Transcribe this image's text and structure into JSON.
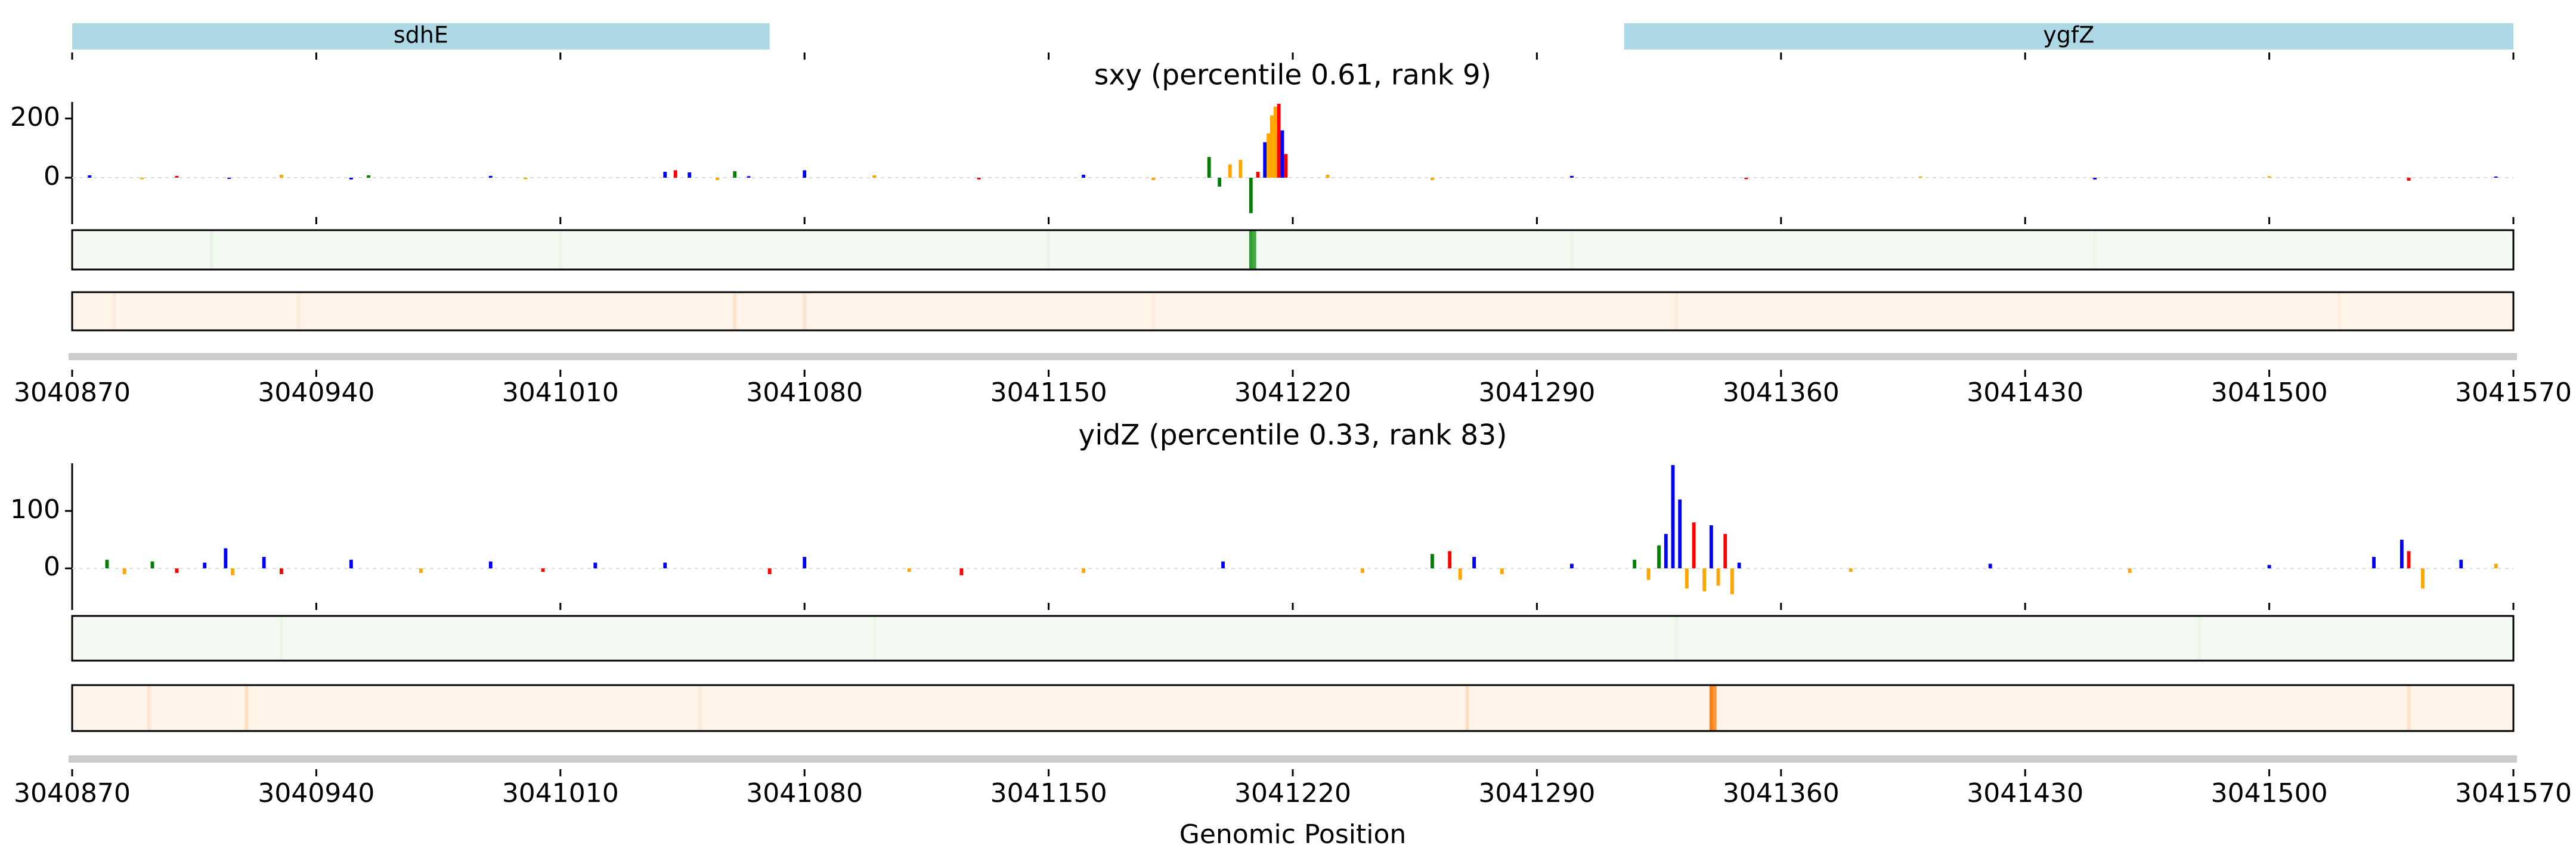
{
  "chart_data": [
    {
      "type": "gene-track",
      "color": "#add8e6",
      "genes": [
        {
          "name": "sdhE",
          "start": 3040870,
          "end": 3041070
        },
        {
          "name": "ygfZ",
          "start": 3041315,
          "end": 3041570
        }
      ],
      "xlim": [
        3040870,
        3041570
      ],
      "xticks": [
        3040870,
        3040940,
        3041010,
        3041080,
        3041150,
        3041220,
        3041290,
        3041360,
        3041430,
        3041500,
        3041570
      ]
    },
    {
      "type": "logo",
      "title": "sxy (percentile 0.61, rank 9)",
      "x": [
        3040875,
        3040890,
        3040900,
        3040915,
        3040930,
        3040950,
        3040955,
        3040990,
        3041000,
        3041040,
        3041043,
        3041047,
        3041055,
        3041060,
        3041064,
        3041080,
        3041100,
        3041130,
        3041160,
        3041180,
        3041196,
        3041199,
        3041202,
        3041205,
        3041208,
        3041210,
        3041212,
        3041213,
        3041214,
        3041215,
        3041216,
        3041217,
        3041218,
        3041230,
        3041260,
        3041300,
        3041350,
        3041400,
        3041450,
        3041500,
        3041540,
        3041565
      ],
      "values": [
        8,
        -5,
        6,
        -4,
        10,
        -6,
        8,
        6,
        -5,
        20,
        25,
        18,
        -8,
        22,
        5,
        25,
        8,
        -6,
        10,
        -8,
        70,
        -30,
        45,
        60,
        -120,
        20,
        120,
        150,
        210,
        240,
        250,
        160,
        80,
        10,
        -8,
        6,
        -5,
        4,
        -6,
        5,
        -10,
        4
      ],
      "colors": [
        "#0000ff",
        "#ffa500",
        "#ff0000",
        "#0000ff",
        "#ffa500",
        "#0000ff",
        "#008000",
        "#0000ff",
        "#ffa500",
        "#0000ff",
        "#ff0000",
        "#0000ff",
        "#ffa500",
        "#008000",
        "#0000ff",
        "#0000ff",
        "#ffa500",
        "#ff0000",
        "#0000ff",
        "#ffa500",
        "#008000",
        "#008000",
        "#ffa500",
        "#ffa500",
        "#008000",
        "#ff0000",
        "#0000ff",
        "#ffa500",
        "#ffa500",
        "#ffa500",
        "#ff0000",
        "#0000ff",
        "#ff0000",
        "#ffa500",
        "#ffa500",
        "#0000ff",
        "#ff0000",
        "#ffa500",
        "#0000ff",
        "#ffa500",
        "#ff0000",
        "#0000ff"
      ],
      "ylim": [
        -133,
        256
      ],
      "yticks": [
        0,
        200
      ],
      "xlim": [
        3040870,
        3041570
      ],
      "xticks": [
        3040870,
        3040940,
        3041010,
        3041080,
        3041150,
        3041220,
        3041290,
        3041360,
        3041430,
        3041500,
        3041570
      ],
      "heat": [
        {
          "color": "#2ca02c",
          "base": "#f3faf1",
          "x": [
            3040910,
            3041010,
            3041150,
            3041208,
            3041209,
            3041300,
            3041450
          ],
          "values": [
            0.05,
            0.04,
            0.04,
            1,
            0.9,
            0.03,
            0.03
          ]
        },
        {
          "color": "#ff7f0e",
          "base": "#fef4ea",
          "x": [
            3040882,
            3040935,
            3041060,
            3041080,
            3041180,
            3041330,
            3041520
          ],
          "values": [
            0.08,
            0.06,
            0.15,
            0.12,
            0.06,
            0.05,
            0.05
          ]
        }
      ]
    },
    {
      "type": "logo",
      "title": "yidZ (percentile 0.33, rank 83)",
      "xlabel": "Genomic Position",
      "x": [
        3040880,
        3040885,
        3040893,
        3040900,
        3040908,
        3040914,
        3040916,
        3040925,
        3040930,
        3040950,
        3040970,
        3040990,
        3041005,
        3041020,
        3041040,
        3041070,
        3041080,
        3041110,
        3041125,
        3041160,
        3041200,
        3041240,
        3041260,
        3041265,
        3041268,
        3041272,
        3041280,
        3041300,
        3041318,
        3041322,
        3041325,
        3041327,
        3041329,
        3041331,
        3041333,
        3041335,
        3041338,
        3041340,
        3041342,
        3041344,
        3041346,
        3041348,
        3041380,
        3041420,
        3041460,
        3041500,
        3041530,
        3041538,
        3041540,
        3041544,
        3041555,
        3041565
      ],
      "values": [
        15,
        -10,
        12,
        -8,
        10,
        35,
        -12,
        20,
        -10,
        15,
        -8,
        12,
        -6,
        10,
        10,
        -10,
        20,
        -6,
        -12,
        -8,
        12,
        -8,
        25,
        30,
        -20,
        20,
        -10,
        8,
        15,
        -20,
        40,
        60,
        180,
        120,
        -35,
        80,
        -40,
        75,
        -30,
        60,
        -45,
        10,
        -6,
        8,
        -8,
        6,
        20,
        50,
        30,
        -35,
        15,
        8
      ],
      "colors": [
        "#008000",
        "#ffa500",
        "#008000",
        "#ff0000",
        "#0000ff",
        "#0000ff",
        "#ffa500",
        "#0000ff",
        "#ff0000",
        "#0000ff",
        "#ffa500",
        "#0000ff",
        "#ff0000",
        "#0000ff",
        "#0000ff",
        "#ff0000",
        "#0000ff",
        "#ffa500",
        "#ff0000",
        "#ffa500",
        "#0000ff",
        "#ffa500",
        "#008000",
        "#ff0000",
        "#ffa500",
        "#0000ff",
        "#ffa500",
        "#0000ff",
        "#008000",
        "#ffa500",
        "#008000",
        "#0000ff",
        "#0000ff",
        "#0000ff",
        "#ffa500",
        "#ff0000",
        "#ffa500",
        "#0000ff",
        "#ffa500",
        "#ff0000",
        "#ffa500",
        "#0000ff",
        "#ffa500",
        "#0000ff",
        "#ffa500",
        "#0000ff",
        "#0000ff",
        "#0000ff",
        "#ff0000",
        "#ffa500",
        "#0000ff",
        "#ffa500"
      ],
      "ylim": [
        -60,
        183
      ],
      "yticks": [
        0,
        100
      ],
      "xlim": [
        3040870,
        3041570
      ],
      "xticks": [
        3040870,
        3040940,
        3041010,
        3041080,
        3041150,
        3041220,
        3041290,
        3041360,
        3041430,
        3041500,
        3041570
      ],
      "heat": [
        {
          "color": "#2ca02c",
          "base": "#f3faf1",
          "x": [
            3040930,
            3041100,
            3041330,
            3041480
          ],
          "values": [
            0.03,
            0.03,
            0.04,
            0.03
          ]
        },
        {
          "color": "#ff7f0e",
          "base": "#fef4ea",
          "x": [
            3040892,
            3040920,
            3041050,
            3041270,
            3041340,
            3041341,
            3041540
          ],
          "values": [
            0.12,
            0.18,
            0.08,
            0.2,
            1,
            0.8,
            0.15
          ]
        }
      ]
    }
  ]
}
